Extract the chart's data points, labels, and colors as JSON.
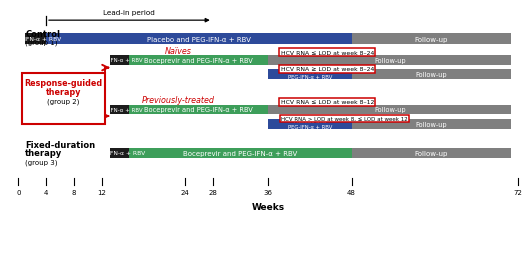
{
  "BLACK": "#1c1c1c",
  "BLUE": "#2d4a9a",
  "GREEN": "#3d9e5a",
  "GRAY": "#7f7f7f",
  "RED": "#cc0000",
  "WHITE": "#ffffff",
  "tick_positions": [
    0,
    4,
    8,
    12,
    24,
    28,
    36,
    48,
    72
  ],
  "tick_labels": [
    "0",
    "4",
    "8",
    "12",
    "24",
    "28",
    "36",
    "48",
    "72"
  ],
  "bar_height": 0.42,
  "small_bar_height": 0.38
}
